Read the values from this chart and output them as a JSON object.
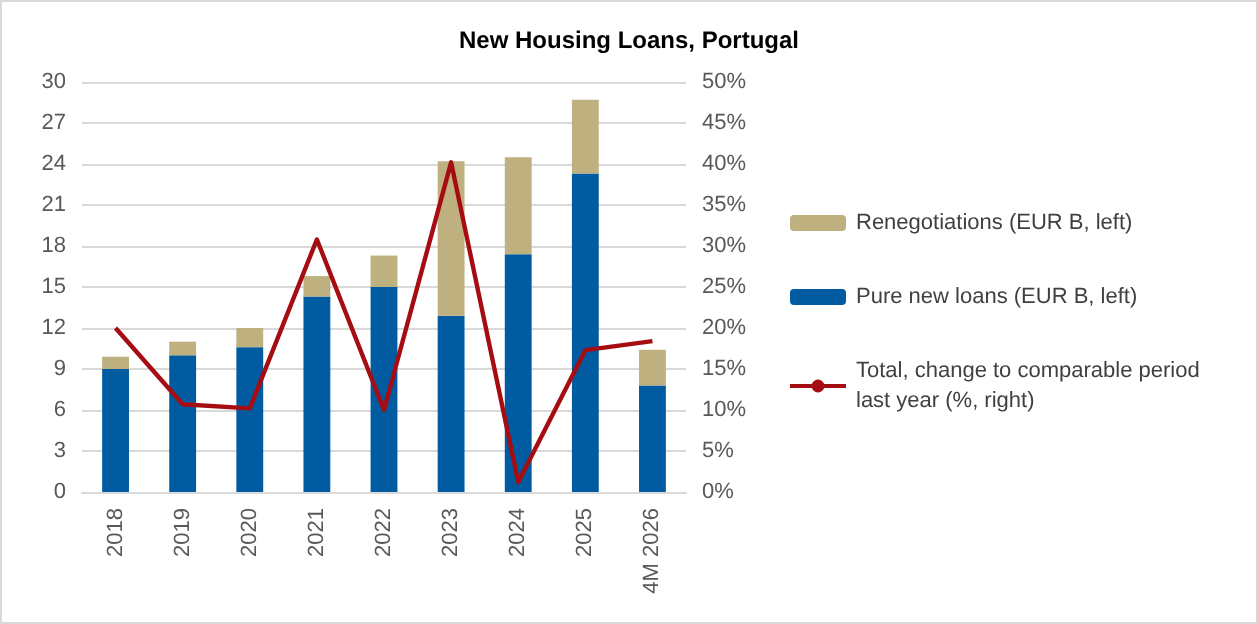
{
  "chart_data": {
    "type": "bar",
    "title": "New Housing Loans, Portugal",
    "stacked": true,
    "categories": [
      "2018",
      "2019",
      "2020",
      "2021",
      "2022",
      "2023",
      "2024",
      "2025",
      "4M 2026"
    ],
    "series": [
      {
        "name": "Pure new loans (EUR B, left)",
        "color": "#005ba1",
        "values": [
          9.0,
          10.0,
          10.6,
          14.3,
          15.0,
          12.9,
          17.4,
          23.3,
          7.8
        ]
      },
      {
        "name": "Renegotiations (EUR B, left)",
        "color": "#bfb07f",
        "values": [
          0.9,
          1.0,
          1.4,
          1.5,
          2.3,
          11.3,
          7.1,
          5.4,
          2.6
        ]
      },
      {
        "name": "Total, change to comparable period last year (%, right)",
        "type": "line",
        "axis": "y2",
        "color": "#a50d12",
        "values": [
          20.0,
          10.7,
          10.2,
          30.8,
          10.0,
          40.2,
          1.2,
          17.3,
          18.4
        ]
      }
    ],
    "ylim": [
      0,
      30
    ],
    "yticks": [
      0,
      3,
      6,
      9,
      12,
      15,
      18,
      21,
      24,
      27,
      30
    ],
    "y2lim": [
      0,
      50
    ],
    "y2ticks": [
      {
        "value": 0,
        "label": "0%"
      },
      {
        "value": 5,
        "label": "5%"
      },
      {
        "value": 10,
        "label": "10%"
      },
      {
        "value": 15,
        "label": "15%"
      },
      {
        "value": 20,
        "label": "20%"
      },
      {
        "value": 25,
        "label": "25%"
      },
      {
        "value": 30,
        "label": "30%"
      },
      {
        "value": 35,
        "label": "35%"
      },
      {
        "value": 40,
        "label": "40%"
      },
      {
        "value": 45,
        "label": "45%"
      },
      {
        "value": 50,
        "label": "50%"
      }
    ],
    "grid": "y",
    "legend": "right",
    "marker": "none",
    "line_style": "solid"
  }
}
